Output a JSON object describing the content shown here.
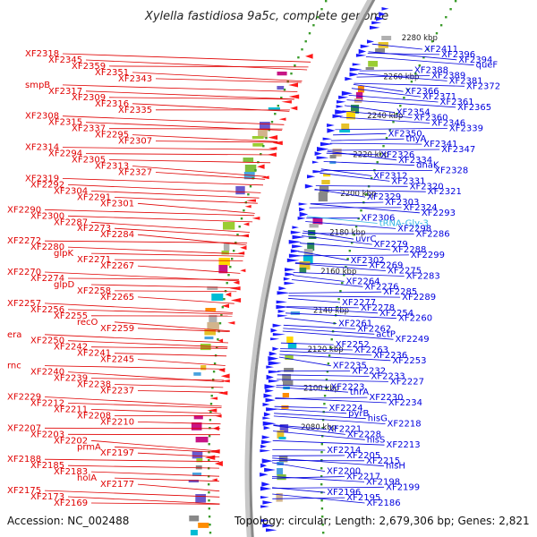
{
  "title": "Xylella fastidiosa 9a5c, complete genome",
  "footer": {
    "accession": "Accession: NC_002488",
    "summary": "Topology: circular; Length: 2,679,306 bp; Genes: 2,821"
  },
  "colors": {
    "left_labels": "#e00000",
    "right_labels": "#0000dd",
    "trna_label": "#33b5e5",
    "backbone": "#888888",
    "tick_dots": "#3a9b2a"
  },
  "kbp_ticks": [
    "2280 kbp",
    "2260 kbp",
    "2240 kbp",
    "2220 kbp",
    "2200 kbp",
    "2180 kbp",
    "2160 kbp",
    "2140 kbp",
    "2120 kbp",
    "2100 kbp",
    "2080 kbp"
  ],
  "left_labels": [
    {
      "text": "XF2318"
    },
    {
      "text": "XF2345"
    },
    {
      "text": "XF2359"
    },
    {
      "text": "XF2351"
    },
    {
      "text": "XF2343"
    },
    {
      "text": "smpB"
    },
    {
      "text": "XF2317"
    },
    {
      "text": "XF2309"
    },
    {
      "text": "XF2316"
    },
    {
      "text": "XF2335"
    },
    {
      "text": "XF2308"
    },
    {
      "text": "XF2315"
    },
    {
      "text": "XF2337"
    },
    {
      "text": "XF2295"
    },
    {
      "text": "XF2307"
    },
    {
      "text": "XF2314"
    },
    {
      "text": "XF2294"
    },
    {
      "text": "XF2305"
    },
    {
      "text": "XF2313"
    },
    {
      "text": "XF2327"
    },
    {
      "text": "XF2319"
    },
    {
      "text": "XF2292"
    },
    {
      "text": "XF2304"
    },
    {
      "text": "XF2291"
    },
    {
      "text": "XF2301"
    },
    {
      "text": "XF2290"
    },
    {
      "text": "XF2300"
    },
    {
      "text": "XF2287"
    },
    {
      "text": "XF2273"
    },
    {
      "text": "XF2284"
    },
    {
      "text": "XF2272"
    },
    {
      "text": "XF2280"
    },
    {
      "text": "glpK"
    },
    {
      "text": "XF2271"
    },
    {
      "text": "XF2267"
    },
    {
      "text": "XF2270"
    },
    {
      "text": "XF2274"
    },
    {
      "text": "glpD"
    },
    {
      "text": "XF2258"
    },
    {
      "text": "XF2265"
    },
    {
      "text": "XF2257"
    },
    {
      "text": "XF2256"
    },
    {
      "text": "XF2255"
    },
    {
      "text": "recO"
    },
    {
      "text": "XF2259"
    },
    {
      "text": "era"
    },
    {
      "text": "XF2250"
    },
    {
      "text": "XF2242"
    },
    {
      "text": "XF2241"
    },
    {
      "text": "XF2245"
    },
    {
      "text": "rnc"
    },
    {
      "text": "XF2240"
    },
    {
      "text": "XF2239"
    },
    {
      "text": "XF2238"
    },
    {
      "text": "XF2237"
    },
    {
      "text": "XF2229"
    },
    {
      "text": "XF2212"
    },
    {
      "text": "XF2211"
    },
    {
      "text": "XF2208"
    },
    {
      "text": "XF2210"
    },
    {
      "text": "XF2207"
    },
    {
      "text": "XF2203"
    },
    {
      "text": "XF2202"
    },
    {
      "text": "prmA"
    },
    {
      "text": "XF2197"
    },
    {
      "text": "XF2188"
    },
    {
      "text": "XF2185"
    },
    {
      "text": "XF2183"
    },
    {
      "text": "holA"
    },
    {
      "text": "XF2177"
    },
    {
      "text": "XF2175"
    },
    {
      "text": "XF2173"
    },
    {
      "text": "XF2169"
    }
  ],
  "right_labels": [
    {
      "text": "XF2411"
    },
    {
      "text": "XF2396"
    },
    {
      "text": "XF2394"
    },
    {
      "text": "queF"
    },
    {
      "text": "XF2388"
    },
    {
      "text": "XF2389"
    },
    {
      "text": "XF2381"
    },
    {
      "text": "XF2372"
    },
    {
      "text": "XF2366"
    },
    {
      "text": "XF2371"
    },
    {
      "text": "XF2361"
    },
    {
      "text": "XF2365"
    },
    {
      "text": "XF2354"
    },
    {
      "text": "XF2360"
    },
    {
      "text": "XF2346"
    },
    {
      "text": "XF2339"
    },
    {
      "text": "XF2350"
    },
    {
      "text": "thyA"
    },
    {
      "text": "XF2341"
    },
    {
      "text": "XF2347"
    },
    {
      "text": "XF2326"
    },
    {
      "text": "XF2334"
    },
    {
      "text": "dnaK"
    },
    {
      "text": "XF2328"
    },
    {
      "text": "XF2312"
    },
    {
      "text": "XF2331"
    },
    {
      "text": "XF2320"
    },
    {
      "text": "XF2321"
    },
    {
      "text": "XF2329"
    },
    {
      "text": "XF2303"
    },
    {
      "text": "XF2324"
    },
    {
      "text": "XF2293"
    },
    {
      "text": "XF2306"
    },
    {
      "text": "tRNA-Gly-3",
      "trna": true
    },
    {
      "text": "XF2298"
    },
    {
      "text": "XF2286"
    },
    {
      "text": "uvrC"
    },
    {
      "text": "XF2279"
    },
    {
      "text": "XF2288"
    },
    {
      "text": "XF2299"
    },
    {
      "text": "XF2302"
    },
    {
      "text": "XF2269"
    },
    {
      "text": "XF2275"
    },
    {
      "text": "XF2283"
    },
    {
      "text": "XF2264"
    },
    {
      "text": "XF2276"
    },
    {
      "text": "XF2285"
    },
    {
      "text": "XF2289"
    },
    {
      "text": "XF2277"
    },
    {
      "text": "XF2278"
    },
    {
      "text": "XF2254"
    },
    {
      "text": "XF2260"
    },
    {
      "text": "XF2261"
    },
    {
      "text": "XF2262"
    },
    {
      "text": "actP"
    },
    {
      "text": "XF2249"
    },
    {
      "text": "XF2252"
    },
    {
      "text": "XF2263"
    },
    {
      "text": "XF2236"
    },
    {
      "text": "XF2253"
    },
    {
      "text": "XF2235"
    },
    {
      "text": "XF2232"
    },
    {
      "text": "XF2233"
    },
    {
      "text": "XF2227"
    },
    {
      "text": "XF2223"
    },
    {
      "text": "thrA"
    },
    {
      "text": "XF2230"
    },
    {
      "text": "XF2234"
    },
    {
      "text": "XF2224"
    },
    {
      "text": "pyrB"
    },
    {
      "text": "hisG"
    },
    {
      "text": "XF2218"
    },
    {
      "text": "XF2221"
    },
    {
      "text": "XF2228"
    },
    {
      "text": "hisS"
    },
    {
      "text": "XF2213"
    },
    {
      "text": "XF2214"
    },
    {
      "text": "XF2205"
    },
    {
      "text": "XF2215"
    },
    {
      "text": "hisH"
    },
    {
      "text": "XF2200"
    },
    {
      "text": "XF2217"
    },
    {
      "text": "XF2198"
    },
    {
      "text": "XF2199"
    },
    {
      "text": "XF2196"
    },
    {
      "text": "XF2195"
    },
    {
      "text": "XF2186"
    }
  ]
}
